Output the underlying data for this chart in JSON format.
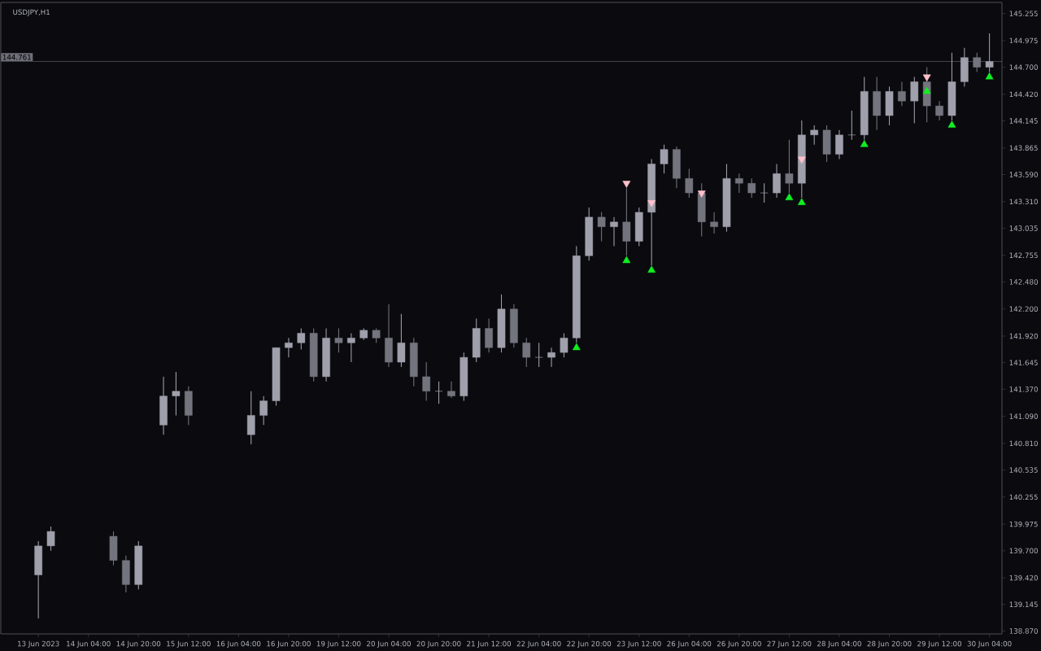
{
  "chart_data": {
    "type": "candlestick",
    "title": "USDJPY,H1",
    "categories": [
      "13 Jun 2023",
      null,
      null,
      null,
      "14 Jun 04:00",
      null,
      null,
      null,
      "14 Jun 20:00",
      null,
      null,
      null,
      "15 Jun 12:00",
      null,
      null,
      null,
      "16 Jun 04:00",
      null,
      null,
      null,
      "16 Jun 20:00",
      null,
      null,
      null,
      "19 Jun 12:00",
      null,
      null,
      null,
      "20 Jun 04:00",
      null,
      null,
      null,
      "20 Jun 20:00",
      null,
      null,
      null,
      "21 Jun 12:00",
      null,
      null,
      null,
      "22 Jun 04:00",
      null,
      null,
      null,
      "22 Jun 20:00",
      null,
      null,
      null,
      "23 Jun 12:00",
      null,
      null,
      null,
      "26 Jun 04:00",
      null,
      null,
      null,
      "26 Jun 20:00",
      null,
      null,
      null,
      "27 Jun 12:00",
      null,
      null,
      null,
      "28 Jun 04:00",
      null,
      null,
      null,
      "28 Jun 20:00",
      null,
      null,
      null,
      "29 Jun 12:00",
      null,
      null,
      null,
      "30 Jun 04:00"
    ],
    "ohlc": [
      [
        139.45,
        139.8,
        139.0,
        139.75
      ],
      [
        139.75,
        139.95,
        139.7,
        139.9
      ],
      null,
      null,
      null,
      null,
      [
        139.85,
        139.9,
        139.55,
        139.6
      ],
      [
        139.6,
        139.65,
        139.27,
        139.35
      ],
      [
        139.35,
        139.8,
        139.3,
        139.75
      ],
      null,
      [
        141.0,
        141.5,
        140.9,
        141.3
      ],
      [
        141.3,
        141.55,
        141.1,
        141.35
      ],
      [
        141.35,
        141.4,
        141.0,
        141.1
      ],
      null,
      null,
      null,
      null,
      [
        140.9,
        141.35,
        140.8,
        141.1
      ],
      [
        141.1,
        141.3,
        141.0,
        141.25
      ],
      [
        141.25,
        141.8,
        141.2,
        141.8
      ],
      [
        141.8,
        141.9,
        141.7,
        141.85
      ],
      [
        141.85,
        142.0,
        141.78,
        141.95
      ],
      [
        141.95,
        142.0,
        141.45,
        141.5
      ],
      [
        141.5,
        142.0,
        141.45,
        141.9
      ],
      [
        141.9,
        142.0,
        141.75,
        141.85
      ],
      [
        141.85,
        141.95,
        141.65,
        141.9
      ],
      [
        141.9,
        142.0,
        141.88,
        141.98
      ],
      [
        141.98,
        142.0,
        141.85,
        141.9
      ],
      [
        141.9,
        142.25,
        141.6,
        141.65
      ],
      [
        141.65,
        142.15,
        141.6,
        141.85
      ],
      [
        141.85,
        141.9,
        141.4,
        141.5
      ],
      [
        141.5,
        141.65,
        141.25,
        141.35
      ],
      [
        141.35,
        141.45,
        141.22,
        141.35
      ],
      [
        141.35,
        141.45,
        141.28,
        141.3
      ],
      [
        141.3,
        141.75,
        141.25,
        141.7
      ],
      [
        141.7,
        142.1,
        141.65,
        142.0
      ],
      [
        142.0,
        142.1,
        141.75,
        141.8
      ],
      [
        141.8,
        142.35,
        141.75,
        142.2
      ],
      [
        142.2,
        142.25,
        141.8,
        141.85
      ],
      [
        141.85,
        141.9,
        141.6,
        141.7
      ],
      [
        141.7,
        141.85,
        141.6,
        141.7
      ],
      [
        141.7,
        141.8,
        141.6,
        141.75
      ],
      [
        141.75,
        141.95,
        141.7,
        141.9
      ],
      [
        141.9,
        142.85,
        141.85,
        142.75
      ],
      [
        142.75,
        143.25,
        142.7,
        143.15
      ],
      [
        143.15,
        143.2,
        142.9,
        143.05
      ],
      [
        143.05,
        143.15,
        142.85,
        143.1
      ],
      [
        143.1,
        143.45,
        142.75,
        142.9
      ],
      [
        142.9,
        143.25,
        142.85,
        143.2
      ],
      [
        143.2,
        143.75,
        142.65,
        143.7
      ],
      [
        143.7,
        143.9,
        143.6,
        143.85
      ],
      [
        143.85,
        143.88,
        143.45,
        143.55
      ],
      [
        143.55,
        143.65,
        143.35,
        143.4
      ],
      [
        143.4,
        143.5,
        142.95,
        143.1
      ],
      [
        143.1,
        143.2,
        142.98,
        143.05
      ],
      [
        143.05,
        143.7,
        143.0,
        143.55
      ],
      [
        143.55,
        143.6,
        143.4,
        143.5
      ],
      [
        143.5,
        143.55,
        143.35,
        143.4
      ],
      [
        143.4,
        143.5,
        143.3,
        143.4
      ],
      [
        143.4,
        143.7,
        143.35,
        143.6
      ],
      [
        143.6,
        143.95,
        143.4,
        143.5
      ],
      [
        143.5,
        144.15,
        143.35,
        144.0
      ],
      [
        144.0,
        144.1,
        143.9,
        144.05
      ],
      [
        144.05,
        144.1,
        143.72,
        143.8
      ],
      [
        143.8,
        144.05,
        143.75,
        144.0
      ],
      [
        144.0,
        144.25,
        143.95,
        144.0
      ],
      [
        144.0,
        144.6,
        143.95,
        144.45
      ],
      [
        144.45,
        144.6,
        144.05,
        144.2
      ],
      [
        144.2,
        144.5,
        144.1,
        144.45
      ],
      [
        144.45,
        144.55,
        144.3,
        144.35
      ],
      [
        144.35,
        144.6,
        144.12,
        144.55
      ],
      [
        144.55,
        144.7,
        144.13,
        144.3
      ],
      [
        144.3,
        144.35,
        144.15,
        144.2
      ],
      [
        144.2,
        144.85,
        144.15,
        144.55
      ],
      [
        144.55,
        144.9,
        144.5,
        144.8
      ],
      [
        144.8,
        144.85,
        144.65,
        144.7
      ],
      [
        144.7,
        145.05,
        144.65,
        144.76
      ]
    ],
    "series": [
      {
        "type": "scatter",
        "color": "#11ee22",
        "marker": "triangle",
        "values": [
          null,
          null,
          null,
          null,
          null,
          null,
          null,
          null,
          null,
          null,
          null,
          null,
          null,
          null,
          null,
          null,
          null,
          null,
          null,
          null,
          null,
          null,
          null,
          null,
          null,
          null,
          null,
          null,
          null,
          null,
          null,
          null,
          null,
          null,
          null,
          null,
          null,
          null,
          null,
          null,
          null,
          null,
          null,
          141.8,
          null,
          null,
          null,
          142.7,
          null,
          142.6,
          null,
          null,
          null,
          null,
          null,
          null,
          null,
          null,
          null,
          null,
          143.35,
          143.3,
          null,
          null,
          null,
          null,
          143.9,
          null,
          null,
          null,
          null,
          144.45,
          null,
          144.1,
          null,
          null,
          144.6
        ]
      },
      {
        "type": "scatter",
        "color": "#ffc0cb",
        "marker": "triangle",
        "values": [
          null,
          null,
          null,
          null,
          null,
          null,
          null,
          null,
          null,
          null,
          null,
          null,
          null,
          null,
          null,
          null,
          null,
          null,
          null,
          null,
          null,
          null,
          null,
          null,
          null,
          null,
          null,
          null,
          null,
          null,
          null,
          null,
          null,
          null,
          null,
          null,
          null,
          null,
          null,
          null,
          null,
          null,
          null,
          null,
          null,
          null,
          null,
          143.5,
          null,
          143.3,
          null,
          null,
          null,
          143.4,
          null,
          null,
          null,
          null,
          null,
          null,
          null,
          143.75,
          null,
          null,
          null,
          null,
          null,
          null,
          null,
          null,
          null,
          144.6,
          null,
          null,
          null,
          null,
          null
        ]
      }
    ],
    "ylim": [
      138.84,
      145.37
    ],
    "yticks": [
      {
        "value": 138.87,
        "label": "138.870"
      },
      {
        "value": 139.145,
        "label": "139.145"
      },
      {
        "value": 139.42,
        "label": "139.420"
      },
      {
        "value": 139.7,
        "label": "139.700"
      },
      {
        "value": 139.975,
        "label": "139.975"
      },
      {
        "value": 140.255,
        "label": "140.255"
      },
      {
        "value": 140.535,
        "label": "140.535"
      },
      {
        "value": 140.81,
        "label": "140.810"
      },
      {
        "value": 141.09,
        "label": "141.090"
      },
      {
        "value": 141.37,
        "label": "141.370"
      },
      {
        "value": 141.645,
        "label": "141.645"
      },
      {
        "value": 141.92,
        "label": "141.920"
      },
      {
        "value": 142.2,
        "label": "142.200"
      },
      {
        "value": 142.48,
        "label": "142.480"
      },
      {
        "value": 142.755,
        "label": "142.755"
      },
      {
        "value": 143.035,
        "label": "143.035"
      },
      {
        "value": 143.31,
        "label": "143.310"
      },
      {
        "value": 143.59,
        "label": "143.590"
      },
      {
        "value": 143.865,
        "label": "143.865"
      },
      {
        "value": 144.145,
        "label": "144.145"
      },
      {
        "value": 144.42,
        "label": "144.420"
      },
      {
        "value": 144.7,
        "label": "144.700"
      },
      {
        "value": 144.975,
        "label": "144.975"
      },
      {
        "value": 145.255,
        "label": "145.255"
      }
    ],
    "ref_lines": [
      {
        "axis": "y",
        "value": 144.761,
        "label": "144.761",
        "color": "#6e6e78"
      }
    ]
  }
}
